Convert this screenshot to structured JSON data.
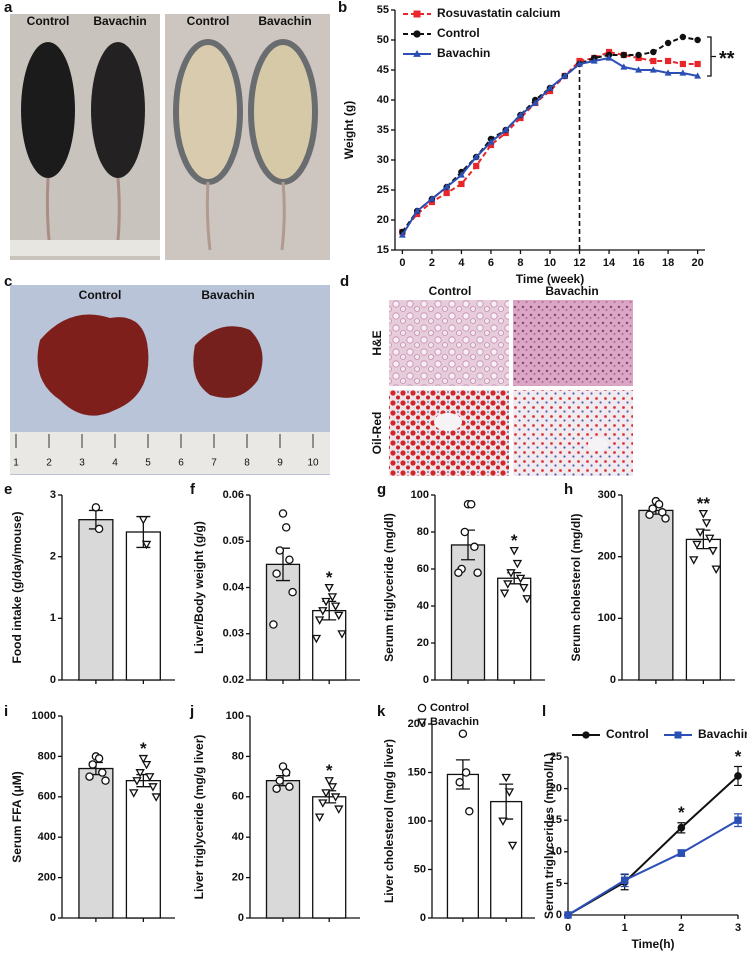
{
  "photos": {
    "a": {
      "label": "a",
      "captions": [
        "Control",
        "Bavachin",
        "Control",
        "Bavachin"
      ]
    },
    "c": {
      "label": "c",
      "captions": [
        "Control",
        "Bavachin"
      ],
      "ruler": [
        1,
        2,
        3,
        4,
        5,
        6,
        7,
        8,
        9,
        10
      ]
    },
    "d": {
      "label": "d",
      "columns": [
        "Control",
        "Bavachin"
      ],
      "rows": [
        "H&E",
        "Oil-Red"
      ]
    }
  },
  "chart_data": [
    {
      "type": "line",
      "label": "b",
      "xlabel": "Time (week)",
      "ylabel": "Weight (g)",
      "x": [
        0,
        1,
        2,
        3,
        4,
        5,
        6,
        7,
        8,
        9,
        10,
        11,
        12,
        13,
        14,
        15,
        16,
        17,
        18,
        19,
        20
      ],
      "xlim": [
        -0.5,
        20.5
      ],
      "xticks": [
        0,
        2,
        4,
        6,
        8,
        10,
        12,
        14,
        16,
        18,
        20
      ],
      "ylim": [
        15,
        55
      ],
      "yticks": [
        15,
        20,
        25,
        30,
        35,
        40,
        45,
        50,
        55
      ],
      "vline": 12,
      "annotation": "**",
      "legend": "upper left",
      "series": [
        {
          "name": "Rosuvastatin calcium",
          "color": "#e8262b",
          "dash": true,
          "marker": "square",
          "values": [
            18,
            21,
            23,
            24.5,
            26,
            29,
            32.5,
            34.5,
            37,
            39.5,
            41.5,
            44,
            46.5,
            47,
            48,
            47.5,
            47,
            46.5,
            46.5,
            46,
            46
          ]
        },
        {
          "name": "Control",
          "color": "#111111",
          "dash": true,
          "marker": "circle",
          "values": [
            18,
            21.5,
            23.5,
            25.5,
            28,
            30.5,
            33.5,
            35,
            37.5,
            40,
            42,
            44,
            46,
            47,
            47.5,
            47.5,
            47.5,
            48,
            49.5,
            50.5,
            50
          ]
        },
        {
          "name": "Bavachin",
          "color": "#2b4fb5",
          "dash": false,
          "marker": "triangle-up",
          "values": [
            17.5,
            21.5,
            23.5,
            25.5,
            27.5,
            30.5,
            33,
            35,
            37.5,
            39.5,
            42,
            44,
            46,
            46.5,
            47,
            45.5,
            45,
            45,
            44.5,
            44.5,
            44
          ]
        }
      ]
    },
    {
      "type": "bar",
      "label": "e",
      "ylabel": "Food intake (g/day/mouse)",
      "categories": [
        null,
        null
      ],
      "values": [
        2.6,
        2.4
      ],
      "errors": [
        0.15,
        0.25
      ],
      "points": [
        [
          2.8,
          2.45
        ],
        [
          2.6,
          2.2
        ]
      ],
      "colors": [
        "#d9d9d9",
        "#ffffff"
      ],
      "markers": [
        "circle",
        "triangle"
      ],
      "ylim": [
        0,
        3
      ],
      "yticks": [
        0,
        1,
        2,
        3
      ]
    },
    {
      "type": "bar",
      "label": "f",
      "ylabel": "Liver/Body weight (g/g)",
      "categories": [
        null,
        null
      ],
      "values": [
        0.045,
        0.035
      ],
      "errors": [
        0.0035,
        0.002
      ],
      "points": [
        [
          0.056,
          0.053,
          0.048,
          0.046,
          0.043,
          0.039,
          0.032
        ],
        [
          0.04,
          0.038,
          0.037,
          0.036,
          0.035,
          0.034,
          0.033,
          0.03,
          0.029
        ]
      ],
      "colors": [
        "#d9d9d9",
        "#ffffff"
      ],
      "markers": [
        "circle",
        "triangle"
      ],
      "ylim": [
        0.02,
        0.06
      ],
      "yticks": [
        0.02,
        0.03,
        0.04,
        0.05,
        0.06
      ],
      "significance": [
        null,
        "*"
      ]
    },
    {
      "type": "bar",
      "label": "g",
      "ylabel": "Serum triglyceride (mg/dl)",
      "categories": [
        null,
        null
      ],
      "values": [
        73,
        55
      ],
      "errors": [
        8,
        3
      ],
      "points": [
        [
          95,
          95,
          80,
          72,
          60,
          58,
          58
        ],
        [
          70,
          63,
          58,
          55,
          52,
          50,
          47,
          44
        ]
      ],
      "colors": [
        "#d9d9d9",
        "#ffffff"
      ],
      "markers": [
        "circle",
        "triangle"
      ],
      "ylim": [
        0,
        100
      ],
      "yticks": [
        0,
        20,
        40,
        60,
        80,
        100
      ],
      "significance": [
        null,
        "*"
      ]
    },
    {
      "type": "bar",
      "label": "h",
      "ylabel": "Serum cholesterol (mg/dl)",
      "categories": [
        null,
        null
      ],
      "values": [
        275,
        228
      ],
      "errors": [
        6,
        15
      ],
      "points": [
        [
          290,
          285,
          278,
          272,
          268,
          262
        ],
        [
          270,
          255,
          240,
          230,
          220,
          210,
          195,
          180
        ]
      ],
      "colors": [
        "#d9d9d9",
        "#ffffff"
      ],
      "markers": [
        "circle",
        "triangle"
      ],
      "ylim": [
        0,
        300
      ],
      "yticks": [
        0,
        100,
        200,
        300
      ],
      "significance": [
        null,
        "**"
      ]
    },
    {
      "type": "bar",
      "label": "i",
      "ylabel": "Serum FFA (μM)",
      "categories": [
        null,
        null
      ],
      "values": [
        740,
        680
      ],
      "errors": [
        30,
        30
      ],
      "points": [
        [
          800,
          790,
          760,
          720,
          700,
          680
        ],
        [
          790,
          760,
          720,
          700,
          680,
          650,
          620,
          600
        ]
      ],
      "colors": [
        "#d9d9d9",
        "#ffffff"
      ],
      "markers": [
        "circle",
        "triangle"
      ],
      "ylim": [
        0,
        1000
      ],
      "yticks": [
        0,
        200,
        400,
        600,
        800,
        1000
      ],
      "significance": [
        null,
        "*"
      ]
    },
    {
      "type": "bar",
      "label": "j",
      "ylabel": "Liver triglyceride (mg/g liver)",
      "categories": [
        null,
        null
      ],
      "values": [
        68,
        60
      ],
      "errors": [
        2.5,
        3
      ],
      "points": [
        [
          75,
          72,
          68,
          65,
          64
        ],
        [
          68,
          65,
          62,
          60,
          57,
          54,
          50
        ]
      ],
      "colors": [
        "#d9d9d9",
        "#ffffff"
      ],
      "markers": [
        "circle",
        "triangle"
      ],
      "ylim": [
        0,
        100
      ],
      "yticks": [
        0,
        20,
        40,
        60,
        80,
        100
      ],
      "significance": [
        null,
        "*"
      ]
    },
    {
      "type": "bar",
      "label": "k",
      "ylabel": "Liver cholesterol (mg/g liver)",
      "categories": [
        null,
        null
      ],
      "values": [
        148,
        120
      ],
      "errors": [
        15,
        18
      ],
      "points": [
        [
          190,
          150,
          140,
          110
        ],
        [
          145,
          130,
          100,
          75
        ]
      ],
      "colors": [
        "#ffffff",
        "#ffffff"
      ],
      "markers": [
        "circle",
        "triangle"
      ],
      "ylim": [
        0,
        200
      ],
      "yticks": [
        0,
        50,
        100,
        150,
        200
      ],
      "legend": [
        "Control",
        "Bavachin"
      ]
    },
    {
      "type": "line",
      "label": "l",
      "xlabel": "Time(h)",
      "ylabel": "Serum triglycerides (mmol/L)",
      "x": [
        0,
        1,
        2,
        3
      ],
      "xlim": [
        0,
        3
      ],
      "xticks": [
        0,
        1,
        2,
        3
      ],
      "ylim": [
        0,
        25
      ],
      "yticks": [
        0,
        5,
        10,
        15,
        20,
        25
      ],
      "legend": "top",
      "significance": [
        null,
        null,
        "*",
        "*"
      ],
      "series": [
        {
          "name": "Control",
          "color": "#111111",
          "dash": false,
          "marker": "circle",
          "values": [
            0,
            5.2,
            13.8,
            22
          ],
          "errors": [
            0,
            1.2,
            0.8,
            1.5
          ]
        },
        {
          "name": "Bavachin",
          "color": "#2b4fb5",
          "dash": false,
          "marker": "square",
          "values": [
            0,
            5.5,
            9.8,
            15
          ],
          "errors": [
            0,
            1,
            0.5,
            1
          ]
        }
      ]
    }
  ]
}
